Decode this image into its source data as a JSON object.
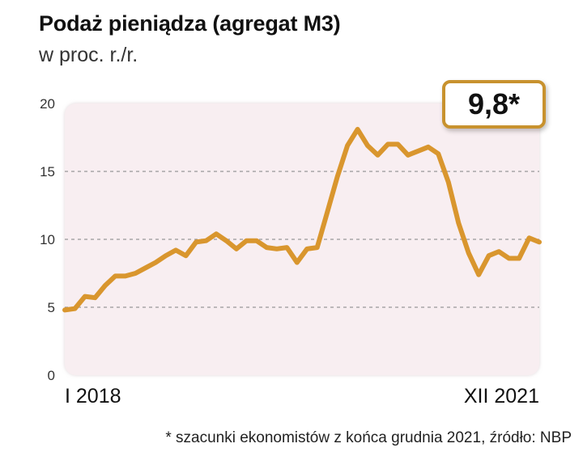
{
  "title": "Podaż pieniądza (agregat M3)",
  "subtitle": "w proc. r./r.",
  "badge": "9,8*",
  "footnote": "* szacunki ekonomistów z końca grudnia 2021, źródło: NBP",
  "colors": {
    "line": "#d9962e",
    "plot_bg": "#f8eef1",
    "badge_border": "#c8922e",
    "grid": "#999999"
  },
  "chart_data": {
    "type": "line",
    "title": "Podaż pieniądza (agregat M3)",
    "ylabel": "w proc. r./r.",
    "ylim": [
      0,
      20
    ],
    "yticks": [
      0,
      5,
      10,
      15,
      20
    ],
    "grid": "dashed horizontal at 5, 10, 15",
    "x_start_label": "I 2018",
    "x_end_label": "XII 2021",
    "series": [
      {
        "values": [
          4.8,
          4.9,
          5.8,
          5.7,
          6.6,
          7.3,
          7.3,
          7.5,
          7.9,
          8.3,
          8.8,
          9.2,
          8.8,
          9.8,
          9.9,
          10.4,
          9.9,
          9.3,
          9.9,
          9.9,
          9.4,
          9.3,
          9.4,
          8.3,
          9.3,
          9.4,
          12.0,
          14.6,
          16.9,
          18.1,
          16.9,
          16.2,
          17.0,
          17.0,
          16.2,
          16.5,
          16.8,
          16.3,
          14.2,
          11.2,
          9.0,
          7.4,
          8.8,
          9.1,
          8.6,
          8.6,
          10.1,
          9.8
        ]
      }
    ]
  }
}
